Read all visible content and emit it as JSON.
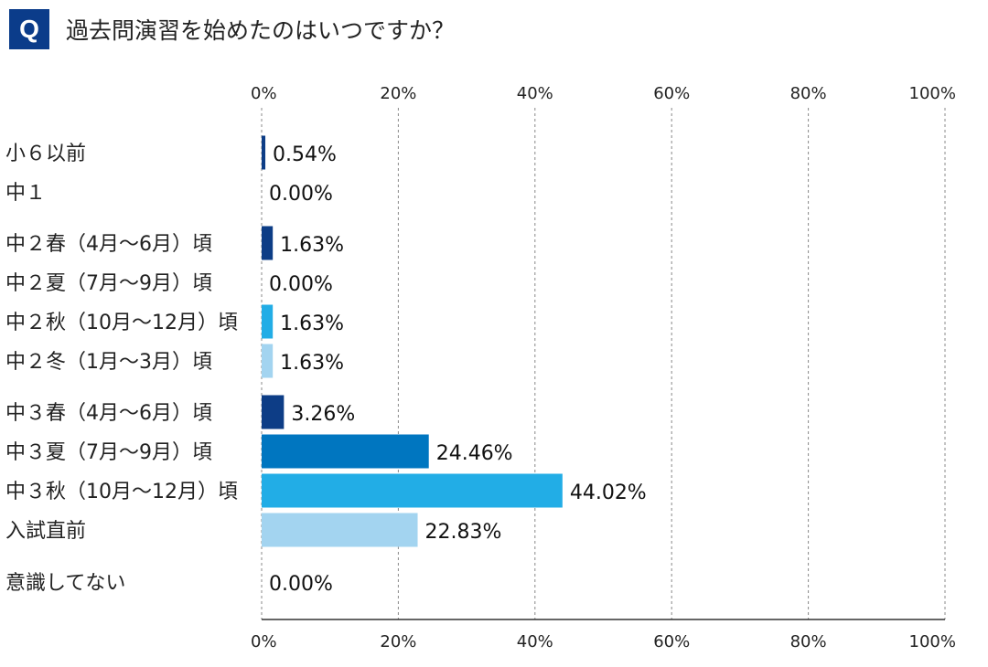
{
  "question": {
    "badge": "Q",
    "title": "過去問演習を始めたのはいつですか？"
  },
  "colors": {
    "badge": "#0b3c8a",
    "navy": "#0d3d86",
    "blue": "#0076c0",
    "sky": "#22ade6",
    "light": "#a3d4f0",
    "grid": "#888888"
  },
  "chart_data": {
    "type": "bar",
    "orientation": "horizontal",
    "title": "過去問演習を始めたのはいつですか？",
    "xlim": [
      0,
      100
    ],
    "x_ticks": [
      "0%",
      "20%",
      "40%",
      "60%",
      "80%",
      "100%"
    ],
    "x_tick_values": [
      0,
      20,
      40,
      60,
      80,
      100
    ],
    "grid": true,
    "categories": [
      "小６以前",
      "中１",
      "中２春（4月〜6月）頃",
      "中２夏（7月〜9月）頃",
      "中２秋（10月〜12月）頃",
      "中２冬（1月〜3月）頃",
      "中３春（4月〜6月）頃",
      "中３夏（7月〜9月）頃",
      "中３秋（10月〜12月）頃",
      "入試直前",
      "意識してない"
    ],
    "values": [
      0.54,
      0.0,
      1.63,
      0.0,
      1.63,
      1.63,
      3.26,
      24.46,
      44.02,
      22.83,
      0.0
    ],
    "value_labels": [
      "0.54%",
      "0.00%",
      "1.63%",
      "0.00%",
      "1.63%",
      "1.63%",
      "3.26%",
      "24.46%",
      "44.02%",
      "22.83%",
      "0.00%"
    ],
    "bar_colors": [
      "#0d3d86",
      "#0d3d86",
      "#0d3d86",
      "#0076c0",
      "#22ade6",
      "#a3d4f0",
      "#0d3d86",
      "#0076c0",
      "#22ade6",
      "#a3d4f0",
      "#a3d4f0"
    ]
  }
}
